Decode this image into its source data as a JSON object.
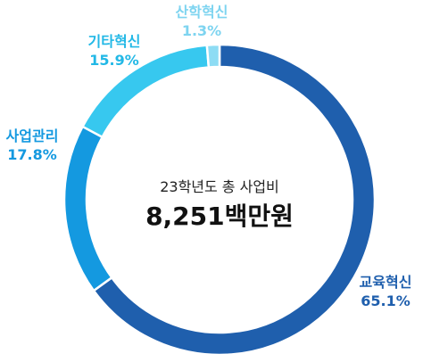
{
  "chart_data": {
    "type": "pie",
    "style": "donut",
    "center": {
      "caption": "23학년도 총 사업비",
      "total": "8,251백만원"
    },
    "unit": "%",
    "slices": [
      {
        "label": "교육혁신",
        "value": 65.1,
        "value_text": "65.1%",
        "color": "#1f5fad",
        "label_color": "#1f5fad"
      },
      {
        "label": "사업관리",
        "value": 17.8,
        "value_text": "17.8%",
        "color": "#1499e0",
        "label_color": "#1499e0"
      },
      {
        "label": "기타혁신",
        "value": 15.9,
        "value_text": "15.9%",
        "color": "#37c8ef",
        "label_color": "#22b8e6"
      },
      {
        "label": "산학혁신",
        "value": 1.3,
        "value_text": "1.3%",
        "color": "#8ddcf4",
        "label_color": "#7ed4f0"
      }
    ]
  }
}
